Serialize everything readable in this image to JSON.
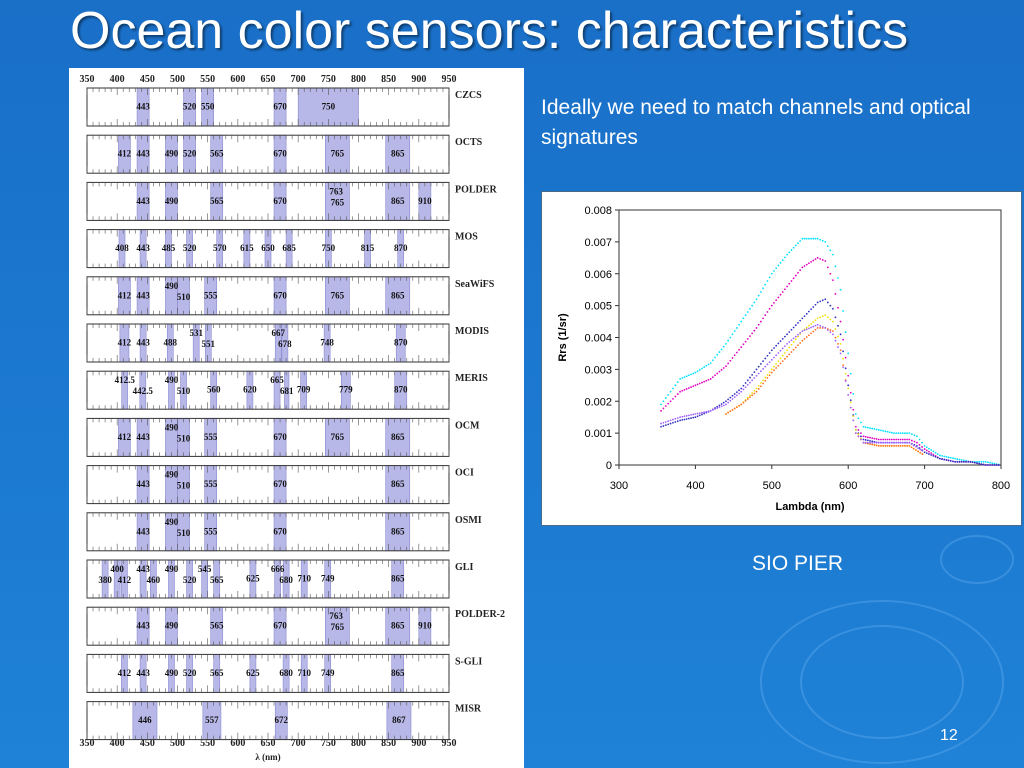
{
  "title": "Ocean color sensors: characteristics",
  "description": "Ideally we need to match channels and optical signatures",
  "site_label": "SIO PIER",
  "page_number": "12",
  "sensor_chart": {
    "axis_ticks": [
      "350",
      "400",
      "450",
      "500",
      "550",
      "600",
      "650",
      "700",
      "750",
      "800",
      "850",
      "900",
      "950"
    ],
    "axis_label": "λ (nm)",
    "band_color": "#b8b8e8",
    "sensors": [
      {
        "name": "CZCS",
        "bands": [
          {
            "c": 443,
            "w": 20,
            "l": "443"
          },
          {
            "c": 520,
            "w": 20,
            "l": "520"
          },
          {
            "c": 550,
            "w": 20,
            "l": "550"
          },
          {
            "c": 670,
            "w": 20,
            "l": "670"
          },
          {
            "c": 750,
            "w": 100,
            "l": "750"
          }
        ]
      },
      {
        "name": "OCTS",
        "bands": [
          {
            "c": 412,
            "w": 20,
            "l": "412"
          },
          {
            "c": 443,
            "w": 20,
            "l": "443"
          },
          {
            "c": 490,
            "w": 20,
            "l": "490"
          },
          {
            "c": 520,
            "w": 20,
            "l": "520"
          },
          {
            "c": 565,
            "w": 20,
            "l": "565"
          },
          {
            "c": 670,
            "w": 20,
            "l": "670"
          },
          {
            "c": 765,
            "w": 40,
            "l": "765"
          },
          {
            "c": 865,
            "w": 40,
            "l": "865"
          }
        ]
      },
      {
        "name": "POLDER",
        "bands": [
          {
            "c": 443,
            "w": 20,
            "l": "443"
          },
          {
            "c": 490,
            "w": 20,
            "l": "490"
          },
          {
            "c": 565,
            "w": 20,
            "l": "565"
          },
          {
            "c": 670,
            "w": 20,
            "l": "670"
          },
          {
            "c": 763,
            "w": 10,
            "l": "763",
            "row": 0
          },
          {
            "c": 765,
            "w": 40,
            "l": "765",
            "row": 1
          },
          {
            "c": 865,
            "w": 40,
            "l": "865"
          },
          {
            "c": 910,
            "w": 20,
            "l": "910"
          }
        ]
      },
      {
        "name": "MOS",
        "bands": [
          {
            "c": 408,
            "w": 10,
            "l": "408"
          },
          {
            "c": 443,
            "w": 10,
            "l": "443"
          },
          {
            "c": 485,
            "w": 10,
            "l": "485"
          },
          {
            "c": 520,
            "w": 10,
            "l": "520"
          },
          {
            "c": 570,
            "w": 10,
            "l": "570"
          },
          {
            "c": 615,
            "w": 10,
            "l": "615"
          },
          {
            "c": 650,
            "w": 10,
            "l": "650"
          },
          {
            "c": 685,
            "w": 10,
            "l": "685"
          },
          {
            "c": 750,
            "w": 10,
            "l": "750"
          },
          {
            "c": 815,
            "w": 10,
            "l": "815"
          },
          {
            "c": 870,
            "w": 10,
            "l": "870"
          }
        ]
      },
      {
        "name": "SeaWiFS",
        "bands": [
          {
            "c": 412,
            "w": 20,
            "l": "412"
          },
          {
            "c": 443,
            "w": 20,
            "l": "443"
          },
          {
            "c": 490,
            "w": 20,
            "l": "490",
            "row": 0
          },
          {
            "c": 510,
            "w": 20,
            "l": "510",
            "row": 1
          },
          {
            "c": 555,
            "w": 20,
            "l": "555"
          },
          {
            "c": 670,
            "w": 20,
            "l": "670"
          },
          {
            "c": 765,
            "w": 40,
            "l": "765"
          },
          {
            "c": 865,
            "w": 40,
            "l": "865"
          }
        ]
      },
      {
        "name": "MODIS",
        "bands": [
          {
            "c": 412,
            "w": 15,
            "l": "412"
          },
          {
            "c": 443,
            "w": 10,
            "l": "443"
          },
          {
            "c": 488,
            "w": 10,
            "l": "488"
          },
          {
            "c": 531,
            "w": 10,
            "l": "531",
            "row": 0
          },
          {
            "c": 551,
            "w": 10,
            "l": "551",
            "row": 1
          },
          {
            "c": 667,
            "w": 10,
            "l": "667",
            "row": 0
          },
          {
            "c": 678,
            "w": 10,
            "l": "678",
            "row": 1
          },
          {
            "c": 748,
            "w": 10,
            "l": "748"
          },
          {
            "c": 870,
            "w": 15,
            "l": "870"
          }
        ]
      },
      {
        "name": "MERIS",
        "bands": [
          {
            "c": 412.5,
            "w": 10,
            "l": "412.5",
            "row": 0
          },
          {
            "c": 442.5,
            "w": 10,
            "l": "442.5",
            "row": 1
          },
          {
            "c": 490,
            "w": 10,
            "l": "490",
            "row": 0
          },
          {
            "c": 510,
            "w": 10,
            "l": "510",
            "row": 1
          },
          {
            "c": 560,
            "w": 10,
            "l": "560"
          },
          {
            "c": 620,
            "w": 10,
            "l": "620"
          },
          {
            "c": 665,
            "w": 10,
            "l": "665",
            "row": 0
          },
          {
            "c": 681,
            "w": 7.5,
            "l": "681",
            "row": 1
          },
          {
            "c": 709,
            "w": 10,
            "l": "709"
          },
          {
            "c": 779,
            "w": 15,
            "l": "779"
          },
          {
            "c": 870,
            "w": 20,
            "l": "870"
          }
        ]
      },
      {
        "name": "OCM",
        "bands": [
          {
            "c": 412,
            "w": 20,
            "l": "412"
          },
          {
            "c": 443,
            "w": 20,
            "l": "443"
          },
          {
            "c": 490,
            "w": 20,
            "l": "490",
            "row": 0
          },
          {
            "c": 510,
            "w": 20,
            "l": "510",
            "row": 1
          },
          {
            "c": 555,
            "w": 20,
            "l": "555"
          },
          {
            "c": 670,
            "w": 20,
            "l": "670"
          },
          {
            "c": 765,
            "w": 40,
            "l": "765"
          },
          {
            "c": 865,
            "w": 40,
            "l": "865"
          }
        ]
      },
      {
        "name": "OCI",
        "bands": [
          {
            "c": 443,
            "w": 20,
            "l": "443"
          },
          {
            "c": 490,
            "w": 20,
            "l": "490",
            "row": 0
          },
          {
            "c": 510,
            "w": 20,
            "l": "510",
            "row": 1
          },
          {
            "c": 555,
            "w": 20,
            "l": "555"
          },
          {
            "c": 670,
            "w": 20,
            "l": "670"
          },
          {
            "c": 865,
            "w": 40,
            "l": "865"
          }
        ]
      },
      {
        "name": "OSMI",
        "bands": [
          {
            "c": 443,
            "w": 20,
            "l": "443"
          },
          {
            "c": 490,
            "w": 20,
            "l": "490",
            "row": 0
          },
          {
            "c": 510,
            "w": 20,
            "l": "510",
            "row": 1
          },
          {
            "c": 555,
            "w": 20,
            "l": "555"
          },
          {
            "c": 670,
            "w": 20,
            "l": "670"
          },
          {
            "c": 865,
            "w": 40,
            "l": "865"
          }
        ]
      },
      {
        "name": "GLI",
        "bands": [
          {
            "c": 380,
            "w": 10,
            "l": "380",
            "row": 1
          },
          {
            "c": 400,
            "w": 10,
            "l": "400",
            "row": 0
          },
          {
            "c": 412,
            "w": 10,
            "l": "412",
            "row": 1
          },
          {
            "c": 443,
            "w": 10,
            "l": "443",
            "row": 0
          },
          {
            "c": 460,
            "w": 10,
            "l": "460",
            "row": 1
          },
          {
            "c": 490,
            "w": 10,
            "l": "490",
            "row": 0
          },
          {
            "c": 520,
            "w": 10,
            "l": "520",
            "row": 1
          },
          {
            "c": 545,
            "w": 10,
            "l": "545",
            "row": 0
          },
          {
            "c": 565,
            "w": 10,
            "l": "565",
            "row": 1
          },
          {
            "c": 625,
            "w": 10,
            "l": "625"
          },
          {
            "c": 666,
            "w": 10,
            "l": "666",
            "row": 0
          },
          {
            "c": 680,
            "w": 10,
            "l": "680",
            "row": 1
          },
          {
            "c": 710,
            "w": 10,
            "l": "710"
          },
          {
            "c": 749,
            "w": 10,
            "l": "749"
          },
          {
            "c": 865,
            "w": 20,
            "l": "865"
          }
        ]
      },
      {
        "name": "POLDER-2",
        "bands": [
          {
            "c": 443,
            "w": 20,
            "l": "443"
          },
          {
            "c": 490,
            "w": 20,
            "l": "490"
          },
          {
            "c": 565,
            "w": 20,
            "l": "565"
          },
          {
            "c": 670,
            "w": 20,
            "l": "670"
          },
          {
            "c": 763,
            "w": 10,
            "l": "763",
            "row": 0
          },
          {
            "c": 765,
            "w": 40,
            "l": "765",
            "row": 1
          },
          {
            "c": 865,
            "w": 40,
            "l": "865"
          },
          {
            "c": 910,
            "w": 20,
            "l": "910"
          }
        ]
      },
      {
        "name": "S-GLI",
        "bands": [
          {
            "c": 412,
            "w": 10,
            "l": "412"
          },
          {
            "c": 443,
            "w": 10,
            "l": "443"
          },
          {
            "c": 490,
            "w": 10,
            "l": "490"
          },
          {
            "c": 520,
            "w": 10,
            "l": "520"
          },
          {
            "c": 565,
            "w": 10,
            "l": "565"
          },
          {
            "c": 625,
            "w": 10,
            "l": "625"
          },
          {
            "c": 680,
            "w": 10,
            "l": "680"
          },
          {
            "c": 710,
            "w": 10,
            "l": "710"
          },
          {
            "c": 749,
            "w": 10,
            "l": "749"
          },
          {
            "c": 865,
            "w": 20,
            "l": "865"
          }
        ]
      },
      {
        "name": "MISR",
        "bands": [
          {
            "c": 446,
            "w": 40,
            "l": "446"
          },
          {
            "c": 557,
            "w": 30,
            "l": "557"
          },
          {
            "c": 672,
            "w": 20,
            "l": "672"
          },
          {
            "c": 867,
            "w": 40,
            "l": "867"
          }
        ]
      }
    ]
  },
  "chart_data": {
    "type": "scatter",
    "xlabel": "Lambda (nm)",
    "ylabel": "Rrs (1/sr)",
    "xlim": [
      300,
      800
    ],
    "ylim": [
      0,
      0.008
    ],
    "xticks": [
      "300",
      "400",
      "500",
      "600",
      "700",
      "800"
    ],
    "yticks": [
      "0",
      "0.001",
      "0.002",
      "0.003",
      "0.004",
      "0.005",
      "0.006",
      "0.007",
      "0.008"
    ],
    "grid": false,
    "series": [
      {
        "color": "#00e0ff",
        "x": [
          355,
          380,
          400,
          420,
          440,
          460,
          480,
          500,
          520,
          540,
          560,
          570,
          580,
          590,
          600,
          610,
          620,
          640,
          660,
          680,
          690,
          700,
          720,
          740,
          760,
          780,
          800
        ],
        "y": [
          0.0019,
          0.0027,
          0.0029,
          0.0032,
          0.0038,
          0.0045,
          0.0052,
          0.006,
          0.0066,
          0.0071,
          0.0071,
          0.007,
          0.0066,
          0.0055,
          0.0035,
          0.0016,
          0.0012,
          0.0011,
          0.001,
          0.001,
          0.0009,
          0.0006,
          0.0003,
          0.0002,
          0.0001,
          0.0001,
          0.0
        ]
      },
      {
        "color": "#e000c0",
        "x": [
          355,
          380,
          400,
          420,
          440,
          460,
          480,
          500,
          520,
          540,
          560,
          570,
          580,
          590,
          600,
          610,
          620,
          640,
          660,
          680,
          690,
          700,
          720,
          740,
          760,
          780,
          800
        ],
        "y": [
          0.0017,
          0.0023,
          0.0025,
          0.0027,
          0.0031,
          0.0037,
          0.0043,
          0.005,
          0.0056,
          0.0062,
          0.0065,
          0.0064,
          0.0058,
          0.0045,
          0.0028,
          0.0012,
          0.0009,
          0.0008,
          0.0008,
          0.0008,
          0.0007,
          0.0005,
          0.0002,
          0.0001,
          0.0001,
          0.0,
          0.0
        ]
      },
      {
        "color": "#3030c0",
        "x": [
          355,
          380,
          400,
          420,
          440,
          460,
          480,
          500,
          520,
          540,
          560,
          570,
          580,
          590,
          600,
          610,
          620,
          640,
          660,
          680,
          690,
          700,
          720,
          740,
          760,
          780,
          800
        ],
        "y": [
          0.0012,
          0.0014,
          0.0015,
          0.0017,
          0.002,
          0.0024,
          0.003,
          0.0036,
          0.0041,
          0.0046,
          0.0051,
          0.0052,
          0.0049,
          0.0041,
          0.0025,
          0.0011,
          0.0008,
          0.0007,
          0.0007,
          0.0007,
          0.0006,
          0.0004,
          0.0002,
          0.0001,
          0.0001,
          0.0,
          0.0
        ]
      },
      {
        "color": "#f0e000",
        "x": [
          440,
          460,
          480,
          500,
          520,
          540,
          560,
          570,
          580,
          590,
          600,
          610,
          620,
          640,
          660,
          680,
          700
        ],
        "y": [
          0.0016,
          0.0019,
          0.0024,
          0.003,
          0.0036,
          0.0042,
          0.0046,
          0.0047,
          0.0045,
          0.0038,
          0.0024,
          0.0011,
          0.0007,
          0.0006,
          0.0006,
          0.0006,
          0.0003
        ]
      },
      {
        "color": "#ff7020",
        "x": [
          440,
          460,
          480,
          500,
          520,
          540,
          560,
          570,
          580,
          590,
          600,
          610,
          620,
          640,
          660,
          680,
          700
        ],
        "y": [
          0.0016,
          0.0019,
          0.0023,
          0.0029,
          0.0034,
          0.0039,
          0.0043,
          0.0043,
          0.0042,
          0.0036,
          0.0022,
          0.001,
          0.0007,
          0.0006,
          0.0006,
          0.0006,
          0.0003
        ]
      },
      {
        "color": "#a060ff",
        "x": [
          355,
          380,
          400,
          420,
          440,
          460,
          480,
          500,
          520,
          540,
          560,
          570,
          580,
          590,
          600,
          610,
          620,
          640,
          660,
          680,
          700
        ],
        "y": [
          0.0013,
          0.0015,
          0.0016,
          0.0017,
          0.0019,
          0.0023,
          0.0028,
          0.0033,
          0.0038,
          0.0042,
          0.0044,
          0.0043,
          0.0041,
          0.0035,
          0.0022,
          0.001,
          0.0007,
          0.0007,
          0.0007,
          0.0007,
          0.0004
        ]
      }
    ]
  }
}
